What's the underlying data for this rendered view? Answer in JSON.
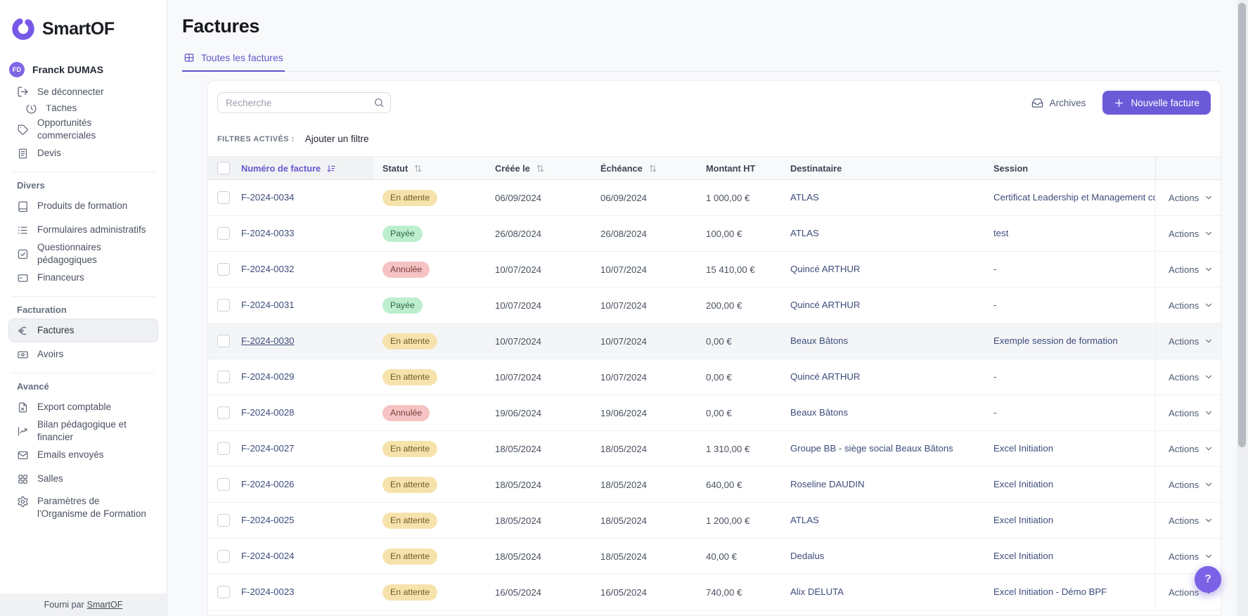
{
  "colors": {
    "accent": "#6C5BD9",
    "accent_light": "#7B61E6",
    "link_navy": "#3E4C7B"
  },
  "brand": {
    "name": "SmartOF"
  },
  "user": {
    "initials": "FD",
    "name": "Franck DUMAS",
    "logout_label": "Se déconnecter"
  },
  "sidebar": {
    "clipped_item": {
      "label": "Tâches",
      "icon": "clock-icon"
    },
    "top_items": [
      {
        "label": "Opportunités commerciales",
        "icon": "tag-icon"
      },
      {
        "label": "Devis",
        "icon": "document-icon"
      }
    ],
    "sections": [
      {
        "title": "Divers",
        "items": [
          {
            "label": "Produits de formation",
            "icon": "book-icon"
          },
          {
            "label": "Formulaires administratifs",
            "icon": "list-icon"
          },
          {
            "label": "Questionnaires pédagogiques",
            "icon": "checkbox-icon"
          },
          {
            "label": "Financeurs",
            "icon": "credit-card-icon"
          }
        ]
      },
      {
        "title": "Facturation",
        "items": [
          {
            "label": "Factures",
            "icon": "euro-icon",
            "active": true
          },
          {
            "label": "Avoirs",
            "icon": "banknote-icon"
          }
        ]
      },
      {
        "title": "Avancé",
        "items": [
          {
            "label": "Export comptable",
            "icon": "file-export-icon"
          },
          {
            "label": "Bilan pédagogique et financier",
            "icon": "chart-icon"
          },
          {
            "label": "Emails envoyés",
            "icon": "mail-icon"
          },
          {
            "label": "Salles",
            "icon": "grid-icon"
          },
          {
            "label": "Paramètres de l'Organisme de Formation",
            "icon": "gear-icon",
            "wrap": true
          }
        ]
      }
    ],
    "footer": {
      "prefix": "Fourni par",
      "link": "SmartOF"
    }
  },
  "page": {
    "title": "Factures",
    "tab": {
      "label": "Toutes les factures",
      "icon": "table-icon"
    },
    "search_placeholder": "Recherche",
    "archives_label": "Archives",
    "new_invoice_label": "Nouvelle facture",
    "filters_label": "FILTRES ACTIVÉS :",
    "add_filter_label": "Ajouter un filtre",
    "help_label": "?"
  },
  "table": {
    "columns": [
      {
        "label": "Numéro de facture",
        "sort": "desc",
        "active": true
      },
      {
        "label": "Statut",
        "sort": "both"
      },
      {
        "label": "Créée le",
        "sort": "both"
      },
      {
        "label": "Échéance",
        "sort": "both"
      },
      {
        "label": "Montant HT"
      },
      {
        "label": "Destinataire"
      },
      {
        "label": "Session"
      }
    ],
    "actions_label": "Actions",
    "status_styles": {
      "En attente": {
        "bg": "#F6E3AC",
        "text": "#6E5A26"
      },
      "Payée": {
        "bg": "#BDEECE",
        "text": "#2E6B45"
      },
      "Annulée": {
        "bg": "#F5C3C3",
        "text": "#7E3B3B"
      }
    },
    "rows": [
      {
        "number": "F-2024-0034",
        "status": "En attente",
        "created": "06/09/2024",
        "due": "06/09/2024",
        "amount": "1 000,00 €",
        "recipient": "ATLAS",
        "session": "Certificat Leadership et Management co",
        "hovered": false
      },
      {
        "number": "F-2024-0033",
        "status": "Payée",
        "created": "26/08/2024",
        "due": "26/08/2024",
        "amount": "100,00 €",
        "recipient": "ATLAS",
        "session": "test",
        "hovered": false
      },
      {
        "number": "F-2024-0032",
        "status": "Annulée",
        "created": "10/07/2024",
        "due": "10/07/2024",
        "amount": "15 410,00 €",
        "recipient": "Quincé ARTHUR",
        "session": "-",
        "hovered": false
      },
      {
        "number": "F-2024-0031",
        "status": "Payée",
        "created": "10/07/2024",
        "due": "10/07/2024",
        "amount": "200,00 €",
        "recipient": "Quincé ARTHUR",
        "session": "-",
        "hovered": false
      },
      {
        "number": "F-2024-0030",
        "status": "En attente",
        "created": "10/07/2024",
        "due": "10/07/2024",
        "amount": "0,00 €",
        "recipient": "Beaux Bâtons",
        "session": "Exemple session de formation",
        "hovered": true
      },
      {
        "number": "F-2024-0029",
        "status": "En attente",
        "created": "10/07/2024",
        "due": "10/07/2024",
        "amount": "0,00 €",
        "recipient": "Quincé ARTHUR",
        "session": "-",
        "hovered": false
      },
      {
        "number": "F-2024-0028",
        "status": "Annulée",
        "created": "19/06/2024",
        "due": "19/06/2024",
        "amount": "0,00 €",
        "recipient": "Beaux Bâtons",
        "session": "-",
        "hovered": false
      },
      {
        "number": "F-2024-0027",
        "status": "En attente",
        "created": "18/05/2024",
        "due": "18/05/2024",
        "amount": "1 310,00 €",
        "recipient": "Groupe BB - siège social Beaux Bâtons",
        "session": "Excel Initiation",
        "hovered": false
      },
      {
        "number": "F-2024-0026",
        "status": "En attente",
        "created": "18/05/2024",
        "due": "18/05/2024",
        "amount": "640,00 €",
        "recipient": "Roseline DAUDIN",
        "session": "Excel Initiation",
        "hovered": false
      },
      {
        "number": "F-2024-0025",
        "status": "En attente",
        "created": "18/05/2024",
        "due": "18/05/2024",
        "amount": "1 200,00 €",
        "recipient": "ATLAS",
        "session": "Excel Initiation",
        "hovered": false
      },
      {
        "number": "F-2024-0024",
        "status": "En attente",
        "created": "18/05/2024",
        "due": "18/05/2024",
        "amount": "40,00 €",
        "recipient": "Dedalus",
        "session": "Excel Initiation",
        "hovered": false
      },
      {
        "number": "F-2024-0023",
        "status": "En attente",
        "created": "16/05/2024",
        "due": "16/05/2024",
        "amount": "740,00 €",
        "recipient": "Alix DELUTA",
        "session": "Excel Initiation - Démo BPF",
        "hovered": false
      }
    ]
  }
}
